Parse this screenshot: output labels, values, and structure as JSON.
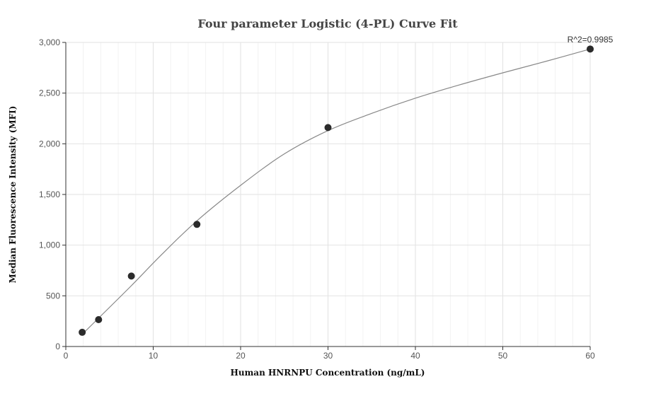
{
  "chart_data": {
    "type": "scatter",
    "title": "Four parameter Logistic (4-PL) Curve Fit",
    "xlabel": "Human HNRNPU Concentration (ng/mL)",
    "ylabel": "Median Fluorescence Intensity (MFI)",
    "xlim": [
      0,
      60
    ],
    "ylim": [
      0,
      3000
    ],
    "x_ticks": [
      0,
      10,
      20,
      30,
      40,
      50,
      60
    ],
    "y_ticks": [
      0,
      500,
      1000,
      1500,
      2000,
      2500,
      3000
    ],
    "x_tick_labels": [
      "0",
      "10",
      "20",
      "30",
      "40",
      "50",
      "60"
    ],
    "y_tick_labels": [
      "0",
      "500",
      "1,000",
      "1,500",
      "2,000",
      "2,500",
      "3,000"
    ],
    "grid": true,
    "points": [
      {
        "x": 1.875,
        "y": 140
      },
      {
        "x": 3.75,
        "y": 265
      },
      {
        "x": 7.5,
        "y": 695
      },
      {
        "x": 15,
        "y": 1205
      },
      {
        "x": 30,
        "y": 2160
      },
      {
        "x": 60,
        "y": 2935
      }
    ],
    "fit_curve": [
      {
        "x": 1.875,
        "y": 120
      },
      {
        "x": 3.75,
        "y": 280
      },
      {
        "x": 7.5,
        "y": 600
      },
      {
        "x": 11,
        "y": 910
      },
      {
        "x": 15,
        "y": 1240
      },
      {
        "x": 20,
        "y": 1590
      },
      {
        "x": 25,
        "y": 1900
      },
      {
        "x": 30,
        "y": 2130
      },
      {
        "x": 35,
        "y": 2300
      },
      {
        "x": 40,
        "y": 2450
      },
      {
        "x": 45,
        "y": 2580
      },
      {
        "x": 50,
        "y": 2700
      },
      {
        "x": 55,
        "y": 2815
      },
      {
        "x": 60,
        "y": 2935
      }
    ],
    "annotation": "R^2=0.9985",
    "colors": {
      "point": "#2b2b2b",
      "curve": "#888888",
      "grid": "#e8e8e8",
      "axis": "#333333"
    }
  }
}
